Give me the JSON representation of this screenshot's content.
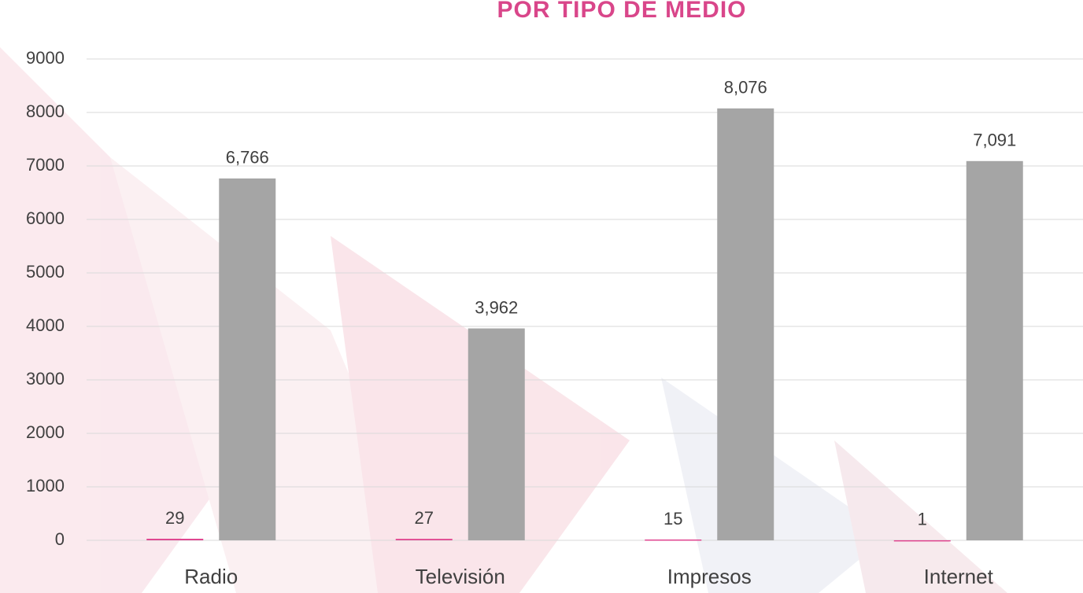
{
  "chart_data": {
    "type": "bar",
    "title": "POR TIPO DE MEDIO",
    "categories": [
      "Radio",
      "Televisión",
      "Impresos",
      "Internet"
    ],
    "series": [
      {
        "color": "#e0458f",
        "values": [
          29,
          27,
          15,
          1
        ]
      },
      {
        "color": "#a5a5a5",
        "values": [
          6766,
          3962,
          8076,
          7091
        ],
        "value_labels": [
          "6,766",
          "3,962",
          "8,076",
          "7,091"
        ]
      }
    ],
    "ylim": [
      0,
      9000
    ],
    "yticks": [
      0,
      1000,
      2000,
      3000,
      4000,
      5000,
      6000,
      7000,
      8000,
      9000
    ],
    "grid": true
  }
}
